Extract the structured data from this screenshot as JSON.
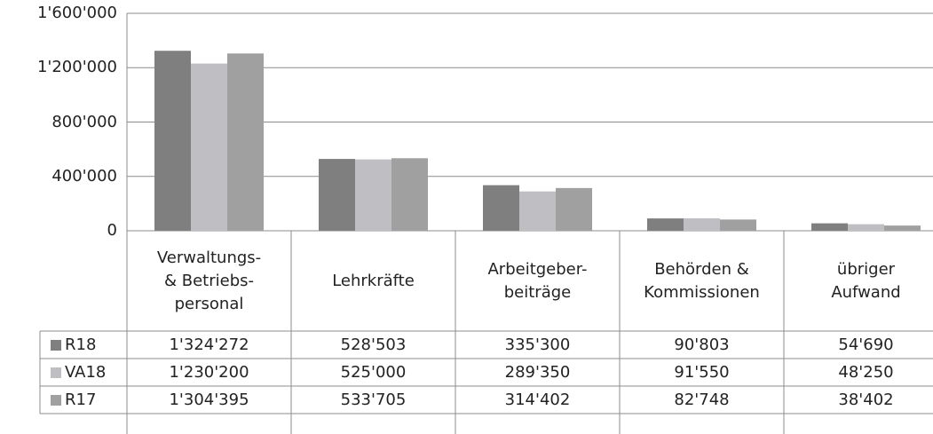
{
  "chart_data": {
    "type": "bar",
    "categories": [
      "Verwaltungs-\n& Betriebs-\npersonal",
      "Lehrkräfte",
      "Arbeitgeber-\nbeiträge",
      "Behörden &\nKommissionen",
      "übriger\nAufwand"
    ],
    "series": [
      {
        "name": "R18",
        "color": "#7f7f7f",
        "values": [
          1324272,
          528503,
          335300,
          90803,
          54690
        ],
        "value_labels": [
          "1'324'272",
          "528'503",
          "335'300",
          "90'803",
          "54'690"
        ]
      },
      {
        "name": "VA18",
        "color": "#bfbfc3",
        "values": [
          1230200,
          525000,
          289350,
          91550,
          48250
        ],
        "value_labels": [
          "1'230'200",
          "525'000",
          "289'350",
          "91'550",
          "48'250"
        ]
      },
      {
        "name": "R17",
        "color": "#a0a0a0",
        "values": [
          1304395,
          533705,
          314402,
          82748,
          38402
        ],
        "value_labels": [
          "1'304'395",
          "533'705",
          "314'402",
          "82'748",
          "38'402"
        ]
      }
    ],
    "ylim": [
      0,
      1600000
    ],
    "yticks": [
      0,
      {
        "value": 400000,
        "label": "400'000"
      },
      {
        "value": 800000,
        "label": "800'000"
      },
      {
        "value": 1200000,
        "label": "1'200'000"
      },
      {
        "value": 1600000,
        "label": "1'600'000"
      }
    ],
    "grid": true
  }
}
